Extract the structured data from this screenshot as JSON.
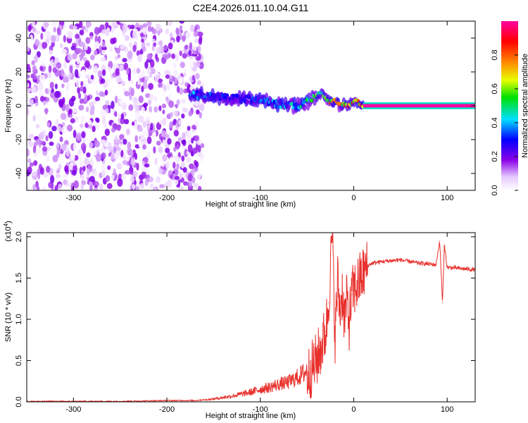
{
  "figure": {
    "title": "C2E4.2026.011.10.04.G11"
  },
  "chart_data": [
    {
      "type": "heatmap",
      "xlabel": "Height of straight line (km)",
      "ylabel": "Frequency (Hz)",
      "xlim": [
        -350,
        130
      ],
      "ylim": [
        -50,
        50
      ],
      "x_ticks": [
        -300,
        -200,
        -100,
        0,
        100
      ],
      "y_ticks": [
        -40,
        -20,
        0,
        20,
        40
      ],
      "colorbar": {
        "label": "Normalized spectral amplitude",
        "range": [
          0,
          1
        ],
        "ticks": [
          0.0,
          0.2,
          0.4,
          0.6,
          0.8
        ],
        "colormap": "rainbow (white-violet-blue-cyan-green-yellow-orange-red-magenta)"
      },
      "noise_region": {
        "x_range": [
          -350,
          -162
        ],
        "y_range": [
          -50,
          50
        ],
        "amplitude_range": [
          0.0,
          0.2
        ]
      },
      "signal_trace": {
        "x": [
          -175,
          -160,
          -140,
          -120,
          -100,
          -80,
          -65,
          -55,
          -45,
          -35,
          -30,
          -25,
          -20,
          -15,
          -10,
          -5,
          0,
          5,
          10,
          50,
          90,
          130
        ],
        "frequency": [
          7,
          6,
          5,
          4,
          3,
          1,
          0,
          1,
          4,
          8,
          5,
          2,
          3,
          0,
          1,
          0,
          3,
          2,
          0,
          0,
          0,
          0
        ],
        "amplitude": [
          0.45,
          0.4,
          0.35,
          0.3,
          0.4,
          0.45,
          0.5,
          0.55,
          0.6,
          0.7,
          0.75,
          0.8,
          0.85,
          0.88,
          0.9,
          0.92,
          0.9,
          0.95,
          1.0,
          1.0,
          1.0,
          1.0
        ]
      },
      "grid": false
    },
    {
      "type": "line",
      "xlabel": "Height of straight line (km)",
      "ylabel": "SNR (10 * v/v)",
      "y_multiplier": "(x10",
      "y_multiplier_exp": "4",
      "y_multiplier_close": ")",
      "xlim": [
        -350,
        130
      ],
      "ylim": [
        0,
        2.05
      ],
      "x_ticks": [
        -300,
        -200,
        -100,
        0,
        100
      ],
      "y_ticks": [
        0.0,
        0.5,
        1.0,
        1.5,
        2.0
      ],
      "series": [
        {
          "color": "#e8302c",
          "x": [
            -350,
            -300,
            -250,
            -200,
            -170,
            -150,
            -130,
            -110,
            -100,
            -90,
            -80,
            -70,
            -60,
            -50,
            -45,
            -40,
            -35,
            -30,
            -27,
            -25,
            -23,
            -20,
            -17,
            -15,
            -12,
            -10,
            -7,
            -5,
            -2,
            0,
            5,
            10,
            15,
            20,
            30,
            40,
            50,
            60,
            70,
            80,
            88,
            92,
            95,
            97,
            100,
            110,
            120,
            130
          ],
          "y": [
            0.0,
            0.0,
            0.0,
            0.01,
            0.01,
            0.03,
            0.06,
            0.1,
            0.13,
            0.15,
            0.18,
            0.2,
            0.25,
            0.32,
            0.4,
            0.5,
            0.65,
            0.85,
            1.2,
            1.6,
            2.05,
            0.8,
            1.5,
            1.1,
            1.35,
            1.0,
            1.25,
            0.95,
            1.3,
            1.35,
            1.45,
            1.55,
            1.65,
            1.68,
            1.7,
            1.71,
            1.72,
            1.7,
            1.68,
            1.67,
            1.66,
            1.95,
            1.2,
            1.9,
            1.63,
            1.62,
            1.61,
            1.6
          ]
        }
      ],
      "grid": false
    }
  ]
}
